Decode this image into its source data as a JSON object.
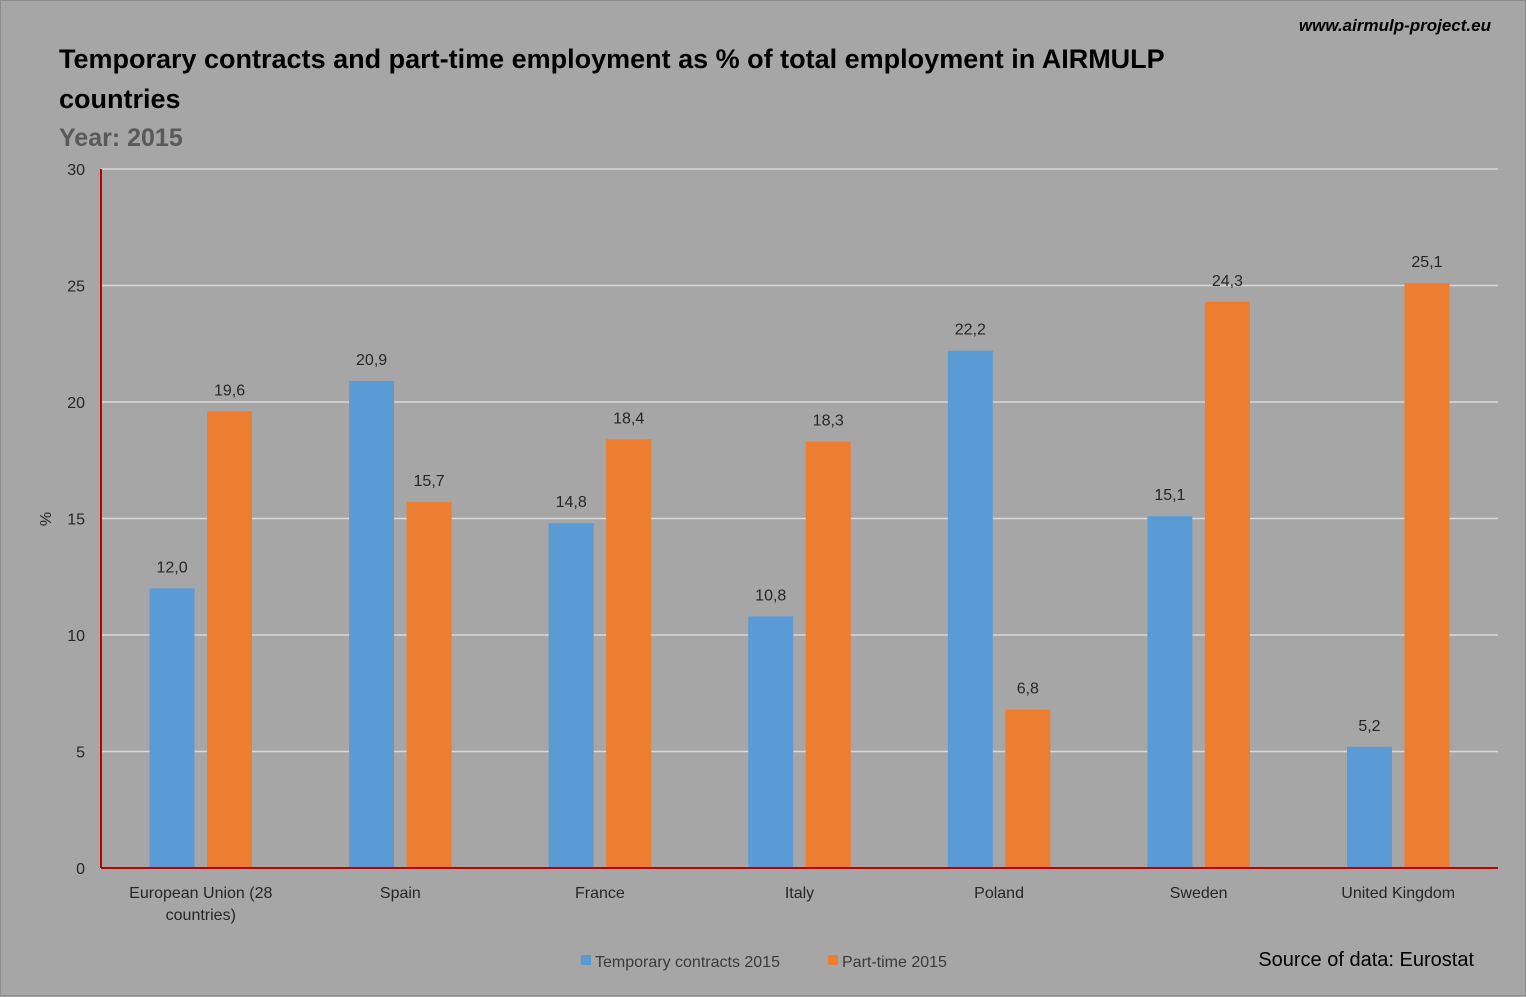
{
  "website": "www.airmulp-project.eu",
  "source_note": "Source of data: Eurostat",
  "colors": {
    "temporary": "#5b9bd5",
    "part_time": "#ed7d31",
    "grid": "#d9d9d9",
    "axis": "#c00000",
    "background": "#a6a6a6"
  },
  "chart_data": {
    "type": "bar",
    "title": "Temporary contracts and part-time employment as % of total employment in AIRMULP countries",
    "title_lines": [
      "Temporary contracts and part-time employment as % of total employment in AIRMULP",
      "countries"
    ],
    "subtitle": "Year: 2015",
    "xlabel": "",
    "ylabel": "%",
    "ylim": [
      0,
      30
    ],
    "yticks": [
      "0",
      "5",
      "10",
      "15",
      "20",
      "25",
      "30"
    ],
    "categories": [
      "European Union (28 countries)",
      "Spain",
      "France",
      "Italy",
      "Poland",
      "Sweden",
      "United Kingdom"
    ],
    "category_lines": [
      [
        "European Union (28",
        "countries)"
      ],
      [
        "Spain"
      ],
      [
        "France"
      ],
      [
        "Italy"
      ],
      [
        "Poland"
      ],
      [
        "Sweden"
      ],
      [
        "United Kingdom"
      ]
    ],
    "series": [
      {
        "name": "Temporary contracts 2015",
        "color": "#5b9bd5",
        "values": [
          12.0,
          20.9,
          14.8,
          10.8,
          22.2,
          15.1,
          5.2
        ],
        "labels": [
          "12,0",
          "20,9",
          "14,8",
          "10,8",
          "22,2",
          "15,1",
          "5,2"
        ]
      },
      {
        "name": "Part-time 2015",
        "color": "#ed7d31",
        "values": [
          19.6,
          15.7,
          18.4,
          18.3,
          6.8,
          24.3,
          25.1
        ],
        "labels": [
          "19,6",
          "15,7",
          "18,4",
          "18,3",
          "6,8",
          "24,3",
          "25,1"
        ]
      }
    ],
    "grid": true,
    "legend_position": "bottom"
  }
}
